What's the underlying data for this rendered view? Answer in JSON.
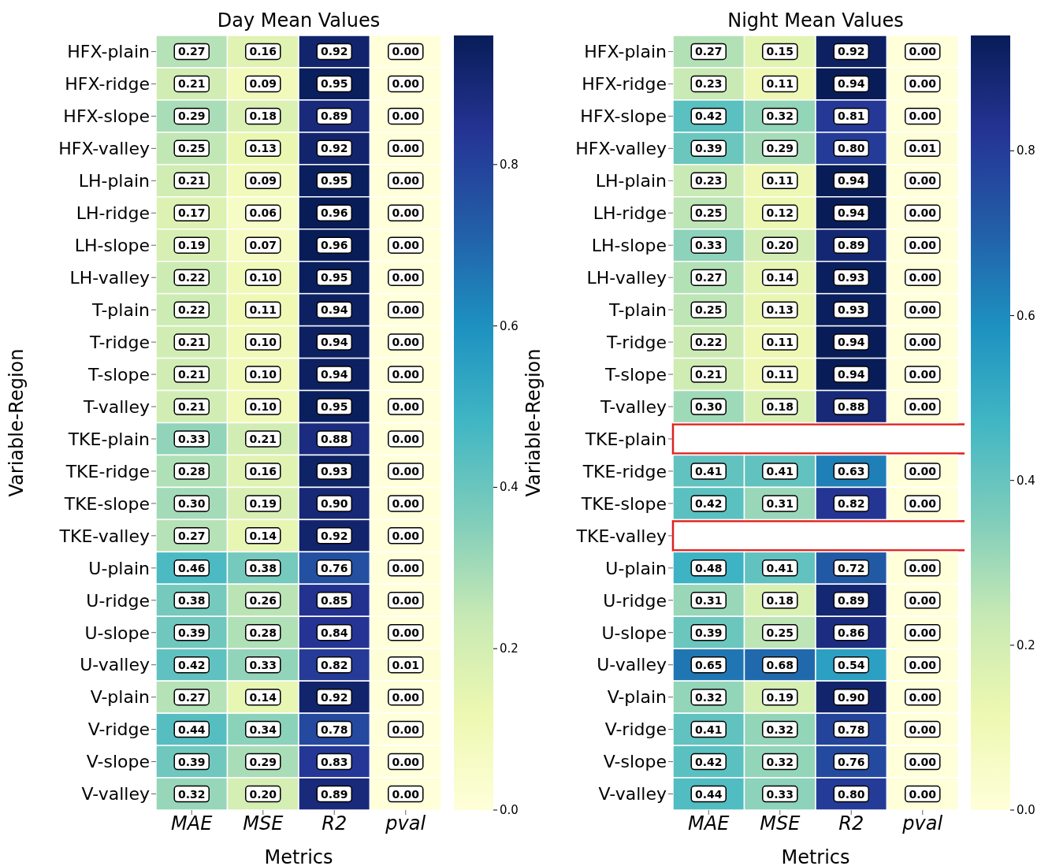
{
  "chart_data": [
    {
      "type": "heatmap",
      "title": "Day Mean Values",
      "xlabel": "Metrics",
      "ylabel": "Variable-Region",
      "categories": [
        "MAE",
        "MSE",
        "R2",
        "pval"
      ],
      "y_categories": [
        "HFX-plain",
        "HFX-ridge",
        "HFX-slope",
        "HFX-valley",
        "LH-plain",
        "LH-ridge",
        "LH-slope",
        "LH-valley",
        "T-plain",
        "T-ridge",
        "T-slope",
        "T-valley",
        "TKE-plain",
        "TKE-ridge",
        "TKE-slope",
        "TKE-valley",
        "U-plain",
        "U-ridge",
        "U-slope",
        "U-valley",
        "V-plain",
        "V-ridge",
        "V-slope",
        "V-valley"
      ],
      "cells": [
        [
          0.27,
          0.16,
          0.92,
          0
        ],
        [
          0.21,
          0.09,
          0.95,
          0
        ],
        [
          0.29,
          0.18,
          0.89,
          0
        ],
        [
          0.25,
          0.13,
          0.92,
          0
        ],
        [
          0.21,
          0.09,
          0.95,
          0
        ],
        [
          0.17,
          0.06,
          0.96,
          0
        ],
        [
          0.19,
          0.07,
          0.96,
          0
        ],
        [
          0.22,
          0.1,
          0.95,
          0
        ],
        [
          0.22,
          0.11,
          0.94,
          0
        ],
        [
          0.21,
          0.1,
          0.94,
          0
        ],
        [
          0.21,
          0.1,
          0.94,
          0
        ],
        [
          0.21,
          0.1,
          0.95,
          0
        ],
        [
          0.33,
          0.21,
          0.88,
          0
        ],
        [
          0.28,
          0.16,
          0.93,
          0
        ],
        [
          0.3,
          0.19,
          0.9,
          0
        ],
        [
          0.27,
          0.14,
          0.92,
          0
        ],
        [
          0.46,
          0.38,
          0.76,
          0
        ],
        [
          0.38,
          0.26,
          0.85,
          0
        ],
        [
          0.39,
          0.28,
          0.84,
          0
        ],
        [
          0.42,
          0.33,
          0.82,
          0.01
        ],
        [
          0.27,
          0.14,
          0.92,
          0
        ],
        [
          0.44,
          0.34,
          0.78,
          0
        ],
        [
          0.39,
          0.29,
          0.83,
          0
        ],
        [
          0.32,
          0.2,
          0.89,
          0
        ]
      ],
      "cell_labels": [
        [
          "0.27",
          "0.16",
          "0.92",
          "0.00"
        ],
        [
          "0.21",
          "0.09",
          "0.95",
          "0.00"
        ],
        [
          "0.29",
          "0.18",
          "0.89",
          "0.00"
        ],
        [
          "0.25",
          "0.13",
          "0.92",
          "0.00"
        ],
        [
          "0.21",
          "0.09",
          "0.95",
          "0.00"
        ],
        [
          "0.17",
          "0.06",
          "0.96",
          "0.00"
        ],
        [
          "0.19",
          "0.07",
          "0.96",
          "0.00"
        ],
        [
          "0.22",
          "0.10",
          "0.95",
          "0.00"
        ],
        [
          "0.22",
          "0.11",
          "0.94",
          "0.00"
        ],
        [
          "0.21",
          "0.10",
          "0.94",
          "0.00"
        ],
        [
          "0.21",
          "0.10",
          "0.94",
          "0.00"
        ],
        [
          "0.21",
          "0.10",
          "0.95",
          "0.00"
        ],
        [
          "0.33",
          "0.21",
          "0.88",
          "0.00"
        ],
        [
          "0.28",
          "0.16",
          "0.93",
          "0.00"
        ],
        [
          "0.30",
          "0.19",
          "0.90",
          "0.00"
        ],
        [
          "0.27",
          "0.14",
          "0.92",
          "0.00"
        ],
        [
          "0.46",
          "0.38",
          "0.76",
          "0.00"
        ],
        [
          "0.38",
          "0.26",
          "0.85",
          "0.00"
        ],
        [
          "0.39",
          "0.28",
          "0.84",
          "0.00"
        ],
        [
          "0.42",
          "0.33",
          "0.82",
          "0.01"
        ],
        [
          "0.27",
          "0.14",
          "0.92",
          "0.00"
        ],
        [
          "0.44",
          "0.34",
          "0.78",
          "0.00"
        ],
        [
          "0.39",
          "0.29",
          "0.83",
          "0.00"
        ],
        [
          "0.32",
          "0.20",
          "0.89",
          "0.00"
        ]
      ],
      "clim": [
        0,
        0.96
      ],
      "cticks": [
        {
          "value": 0,
          "label": "0.0"
        },
        {
          "value": 0.2,
          "label": "0.2"
        },
        {
          "value": 0.4,
          "label": "0.4"
        },
        {
          "value": 0.6,
          "label": "0.6"
        },
        {
          "value": 0.8,
          "label": "0.8"
        }
      ]
    },
    {
      "type": "heatmap",
      "title": "Night Mean Values",
      "xlabel": "Metrics",
      "ylabel": "Variable-Region",
      "categories": [
        "MAE",
        "MSE",
        "R2",
        "pval"
      ],
      "y_categories": [
        "HFX-plain",
        "HFX-ridge",
        "HFX-slope",
        "HFX-valley",
        "LH-plain",
        "LH-ridge",
        "LH-slope",
        "LH-valley",
        "T-plain",
        "T-ridge",
        "T-slope",
        "T-valley",
        "TKE-plain",
        "TKE-ridge",
        "TKE-slope",
        "TKE-valley",
        "U-plain",
        "U-ridge",
        "U-slope",
        "U-valley",
        "V-plain",
        "V-ridge",
        "V-slope",
        "V-valley"
      ],
      "cells": [
        [
          0.27,
          0.15,
          0.92,
          0
        ],
        [
          0.23,
          0.11,
          0.94,
          0
        ],
        [
          0.42,
          0.32,
          0.81,
          0
        ],
        [
          0.39,
          0.29,
          0.8,
          0.01
        ],
        [
          0.23,
          0.11,
          0.94,
          0
        ],
        [
          0.25,
          0.12,
          0.94,
          0
        ],
        [
          0.33,
          0.2,
          0.89,
          0
        ],
        [
          0.27,
          0.14,
          0.93,
          0
        ],
        [
          0.25,
          0.13,
          0.93,
          0
        ],
        [
          0.22,
          0.11,
          0.94,
          0
        ],
        [
          0.21,
          0.11,
          0.94,
          0
        ],
        [
          0.3,
          0.18,
          0.88,
          0
        ],
        [
          null,
          null,
          null,
          null
        ],
        [
          0.41,
          0.41,
          0.63,
          0
        ],
        [
          0.42,
          0.31,
          0.82,
          0
        ],
        [
          null,
          null,
          null,
          null
        ],
        [
          0.48,
          0.41,
          0.72,
          0
        ],
        [
          0.31,
          0.18,
          0.89,
          0
        ],
        [
          0.39,
          0.25,
          0.86,
          0
        ],
        [
          0.65,
          0.68,
          0.54,
          0
        ],
        [
          0.32,
          0.19,
          0.9,
          0
        ],
        [
          0.41,
          0.32,
          0.78,
          0
        ],
        [
          0.42,
          0.32,
          0.76,
          0
        ],
        [
          0.44,
          0.33,
          0.8,
          0
        ]
      ],
      "cell_labels": [
        [
          "0.27",
          "0.15",
          "0.92",
          "0.00"
        ],
        [
          "0.23",
          "0.11",
          "0.94",
          "0.00"
        ],
        [
          "0.42",
          "0.32",
          "0.81",
          "0.00"
        ],
        [
          "0.39",
          "0.29",
          "0.80",
          "0.01"
        ],
        [
          "0.23",
          "0.11",
          "0.94",
          "0.00"
        ],
        [
          "0.25",
          "0.12",
          "0.94",
          "0.00"
        ],
        [
          "0.33",
          "0.20",
          "0.89",
          "0.00"
        ],
        [
          "0.27",
          "0.14",
          "0.93",
          "0.00"
        ],
        [
          "0.25",
          "0.13",
          "0.93",
          "0.00"
        ],
        [
          "0.22",
          "0.11",
          "0.94",
          "0.00"
        ],
        [
          "0.21",
          "0.11",
          "0.94",
          "0.00"
        ],
        [
          "0.30",
          "0.18",
          "0.88",
          "0.00"
        ],
        [
          null,
          null,
          null,
          null
        ],
        [
          "0.41",
          "0.41",
          "0.63",
          "0.00"
        ],
        [
          "0.42",
          "0.31",
          "0.82",
          "0.00"
        ],
        [
          null,
          null,
          null,
          null
        ],
        [
          "0.48",
          "0.41",
          "0.72",
          "0.00"
        ],
        [
          "0.31",
          "0.18",
          "0.89",
          "0.00"
        ],
        [
          "0.39",
          "0.25",
          "0.86",
          "0.00"
        ],
        [
          "0.65",
          "0.68",
          "0.54",
          "0.00"
        ],
        [
          "0.32",
          "0.19",
          "0.90",
          "0.00"
        ],
        [
          "0.41",
          "0.32",
          "0.78",
          "0.00"
        ],
        [
          "0.42",
          "0.32",
          "0.76",
          "0.00"
        ],
        [
          "0.44",
          "0.33",
          "0.80",
          "0.00"
        ]
      ],
      "clim": [
        0,
        0.94
      ],
      "cticks": [
        {
          "value": 0,
          "label": "0.0"
        },
        {
          "value": 0.2,
          "label": "0.2"
        },
        {
          "value": 0.4,
          "label": "0.4"
        },
        {
          "value": 0.6,
          "label": "0.6"
        },
        {
          "value": 0.8,
          "label": "0.8"
        }
      ]
    }
  ]
}
